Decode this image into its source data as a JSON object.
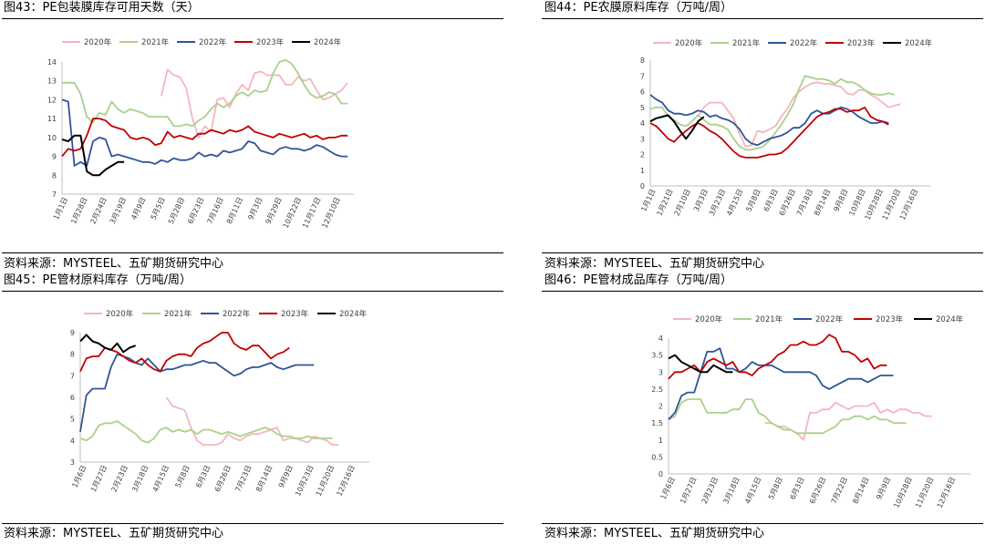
{
  "chart_data": [
    {
      "type": "line",
      "title": "图43：PE包装膜库存可用天数（天）",
      "source": "资料来源：MYSTEEL、五矿期货研究中心",
      "x_labels": [
        "1月1日",
        "1月28日",
        "2月24日",
        "3月19日",
        "4月9日",
        "5月5日",
        "5月28日",
        "6月23日",
        "7月16日",
        "8月11日",
        "9月3日",
        "9月29日",
        "10月22日",
        "11月17日",
        "12月10日"
      ],
      "ylim": [
        7,
        14
      ],
      "yticks": [
        7,
        8,
        9,
        10,
        11,
        12,
        13,
        14
      ],
      "legend_position": "top",
      "series": [
        {
          "name": "2020年",
          "color": "#F4B6BC",
          "values": [
            null,
            null,
            null,
            null,
            null,
            null,
            null,
            null,
            null,
            null,
            null,
            null,
            null,
            null,
            null,
            null,
            12.2,
            13.6,
            13.3,
            13.2,
            12.6,
            11.0,
            10.0,
            10.6,
            10.3,
            12.0,
            12.1,
            11.6,
            12.3,
            12.8,
            12.5,
            13.4,
            13.5,
            13.3,
            13.3,
            13.3,
            12.8,
            12.8,
            13.2,
            13.0,
            13.1,
            12.5,
            12.0,
            12.1,
            12.3,
            12.5,
            12.9
          ]
        },
        {
          "name": "2021年",
          "color": "#A9D18E",
          "values": [
            12.9,
            12.9,
            12.9,
            12.3,
            11.1,
            10.8,
            11.3,
            11.2,
            11.9,
            11.5,
            11.3,
            11.5,
            11.4,
            11.3,
            11.1,
            11.1,
            11.1,
            11.1,
            10.6,
            10.6,
            10.7,
            10.6,
            10.9,
            11.1,
            11.5,
            11.8,
            11.6,
            11.8,
            12.2,
            12.4,
            12.2,
            12.5,
            12.4,
            12.5,
            13.4,
            14.0,
            14.1,
            13.9,
            13.4,
            12.8,
            12.3,
            12.1,
            12.2,
            12.4,
            12.3,
            11.8,
            11.8
          ]
        },
        {
          "name": "2022年",
          "color": "#2F5597",
          "values": [
            12.0,
            11.9,
            8.5,
            8.7,
            8.5,
            9.8,
            10.0,
            9.9,
            9.0,
            9.1,
            9.0,
            8.9,
            8.8,
            8.7,
            8.7,
            8.6,
            8.8,
            8.7,
            8.9,
            8.8,
            8.8,
            8.9,
            9.2,
            9.0,
            9.1,
            9.0,
            9.3,
            9.2,
            9.3,
            9.4,
            9.8,
            9.7,
            9.3,
            9.2,
            9.1,
            9.4,
            9.5,
            9.4,
            9.4,
            9.3,
            9.4,
            9.6,
            9.5,
            9.3,
            9.1,
            9.0,
            9.0
          ]
        },
        {
          "name": "2023年",
          "color": "#C00000",
          "values": [
            9.0,
            9.4,
            9.3,
            9.4,
            10.1,
            11.0,
            11.0,
            10.9,
            10.6,
            10.5,
            10.4,
            10.0,
            9.9,
            10.0,
            9.9,
            9.6,
            9.7,
            10.3,
            10.0,
            10.1,
            10.0,
            9.9,
            10.2,
            10.2,
            10.4,
            10.3,
            10.2,
            10.4,
            10.3,
            10.4,
            10.6,
            10.3,
            10.2,
            10.1,
            10.0,
            10.2,
            10.1,
            10.0,
            10.1,
            10.2,
            10.0,
            10.1,
            9.9,
            10.0,
            10.0,
            10.1,
            10.1
          ]
        },
        {
          "name": "2024年",
          "color": "#000000",
          "values": [
            9.9,
            9.8,
            10.1,
            10.1,
            8.2,
            8.0,
            8.0,
            8.3,
            8.5,
            8.7,
            8.7
          ]
        }
      ]
    },
    {
      "type": "line",
      "title": "图44：PE农膜原料库存（万吨/周）",
      "source": "资料来源：MYSTEEL、五矿期货研究中心",
      "x_labels": [
        "1月1日",
        "1月21日",
        "2月10日",
        "3月3日",
        "3月23日",
        "4月15日",
        "5月8日",
        "6月3日",
        "6月26日",
        "7月18日",
        "8月14日",
        "9月8日",
        "10月8日",
        "10月28日",
        "11月20日",
        "12月16日"
      ],
      "ylim": [
        0,
        8
      ],
      "yticks": [
        0,
        1,
        2,
        3,
        4,
        5,
        6,
        7,
        8
      ],
      "legend_position": "top",
      "series": [
        {
          "name": "2020年",
          "color": "#F4B6BC",
          "values": [
            null,
            null,
            null,
            null,
            null,
            null,
            null,
            null,
            4.4,
            5.0,
            5.3,
            5.3,
            5.3,
            4.8,
            4.3,
            3.3,
            2.5,
            2.6,
            3.5,
            3.4,
            3.6,
            3.8,
            4.4,
            4.9,
            5.6,
            6.0,
            6.3,
            6.5,
            6.6,
            6.5,
            6.5,
            6.4,
            6.3,
            5.9,
            5.8,
            6.1,
            6.1,
            5.8,
            5.6,
            5.3,
            5.0,
            5.1,
            5.2
          ]
        },
        {
          "name": "2021年",
          "color": "#A9D18E",
          "values": [
            4.9,
            5.0,
            5.0,
            4.4,
            4.2,
            3.9,
            3.8,
            4.1,
            4.5,
            4.2,
            3.9,
            3.9,
            3.8,
            3.6,
            3.0,
            2.5,
            2.3,
            2.3,
            2.4,
            2.5,
            2.9,
            3.4,
            3.9,
            4.5,
            5.2,
            6.2,
            7.0,
            6.9,
            6.8,
            6.8,
            6.7,
            6.5,
            6.8,
            6.6,
            6.6,
            6.4,
            6.1,
            5.9,
            5.8,
            5.8,
            5.9,
            5.8
          ]
        },
        {
          "name": "2022年",
          "color": "#2F5597",
          "values": [
            5.8,
            5.5,
            5.3,
            4.8,
            4.6,
            4.6,
            4.5,
            4.6,
            4.8,
            4.7,
            4.4,
            4.5,
            4.3,
            4.2,
            4.0,
            3.6,
            3.0,
            2.7,
            2.6,
            2.8,
            3.0,
            3.1,
            3.2,
            3.4,
            3.7,
            3.7,
            4.0,
            4.6,
            4.8,
            4.6,
            4.6,
            4.8,
            5.0,
            4.9,
            4.7,
            4.4,
            4.2,
            4.0,
            4.0,
            4.1,
            4.0
          ]
        },
        {
          "name": "2023年",
          "color": "#C00000",
          "values": [
            4.0,
            3.8,
            3.4,
            3.0,
            2.8,
            3.2,
            3.5,
            3.8,
            4.0,
            3.8,
            3.5,
            3.3,
            3.0,
            2.6,
            2.2,
            1.9,
            1.8,
            1.8,
            1.8,
            1.9,
            2.0,
            2.0,
            2.1,
            2.4,
            2.8,
            3.2,
            3.6,
            4.0,
            4.4,
            4.6,
            4.7,
            4.9,
            4.9,
            4.7,
            4.8,
            4.8,
            5.0,
            4.4,
            4.2,
            4.1,
            3.9
          ]
        },
        {
          "name": "2024年",
          "color": "#000000",
          "values": [
            4.1,
            4.3,
            4.4,
            4.5,
            4.1,
            3.5,
            3.0,
            3.5,
            4.1,
            4.4
          ]
        }
      ]
    },
    {
      "type": "line",
      "title": "图45：PE管材原料库存（万吨/周）",
      "source": "资料来源：MYSTEEL、五矿期货研究中心",
      "x_labels": [
        "1月6日",
        "1月27日",
        "2月23日",
        "3月18日",
        "4月15日",
        "5月8日",
        "6月3日",
        "6月26日",
        "7月23日",
        "8月14日",
        "9月9日",
        "10月23日",
        "11月20日",
        "12月16日"
      ],
      "ylim": [
        3,
        9
      ],
      "yticks": [
        3,
        4,
        5,
        6,
        7,
        8,
        9
      ],
      "legend_position": "top",
      "series": [
        {
          "name": "2020年",
          "color": "#F4B6BC",
          "values": [
            null,
            null,
            null,
            null,
            null,
            null,
            null,
            null,
            null,
            null,
            null,
            null,
            null,
            null,
            6.0,
            5.6,
            5.5,
            5.4,
            4.6,
            4.0,
            3.8,
            3.8,
            3.8,
            3.9,
            4.3,
            4.1,
            4.0,
            4.2,
            4.3,
            4.3,
            4.4,
            4.5,
            4.6,
            4.0,
            4.1,
            4.1,
            4.0,
            3.9,
            4.2,
            4.1,
            4.0,
            3.8,
            3.8
          ]
        },
        {
          "name": "2021年",
          "color": "#A9D18E",
          "values": [
            4.1,
            4.0,
            4.2,
            4.7,
            4.8,
            4.8,
            4.9,
            4.7,
            4.5,
            4.3,
            4.0,
            3.9,
            4.1,
            4.5,
            4.6,
            4.4,
            4.5,
            4.4,
            4.5,
            4.3,
            4.5,
            4.5,
            4.4,
            4.3,
            4.4,
            4.3,
            4.2,
            4.3,
            4.4,
            4.5,
            4.6,
            4.5,
            4.3,
            4.2,
            4.2,
            4.1,
            4.1,
            4.2,
            4.1,
            4.1,
            4.1,
            4.1
          ]
        },
        {
          "name": "2022年",
          "color": "#2F5597",
          "values": [
            4.4,
            6.1,
            6.4,
            6.4,
            6.4,
            7.4,
            8.0,
            7.9,
            7.8,
            7.6,
            7.5,
            7.8,
            7.5,
            7.2,
            7.3,
            7.3,
            7.4,
            7.5,
            7.5,
            7.6,
            7.7,
            7.6,
            7.6,
            7.4,
            7.2,
            7.0,
            7.1,
            7.3,
            7.4,
            7.4,
            7.5,
            7.6,
            7.4,
            7.3,
            7.4,
            7.5,
            7.5,
            7.5,
            7.5
          ]
        },
        {
          "name": "2023年",
          "color": "#C00000",
          "values": [
            7.2,
            7.8,
            7.9,
            7.9,
            8.3,
            8.2,
            8.1,
            7.9,
            7.7,
            7.6,
            7.8,
            7.5,
            7.3,
            7.2,
            7.7,
            7.9,
            8.0,
            8.0,
            7.9,
            8.3,
            8.5,
            8.6,
            8.8,
            9.0,
            9.0,
            8.5,
            8.3,
            8.2,
            8.4,
            8.4,
            8.1,
            7.8,
            8.0,
            8.1,
            8.3
          ]
        },
        {
          "name": "2024年",
          "color": "#000000",
          "values": [
            8.6,
            8.9,
            8.6,
            8.5,
            8.3,
            8.2,
            8.5,
            8.1,
            8.3,
            8.4
          ]
        }
      ]
    },
    {
      "type": "line",
      "title": "图46：PE管材成品库存（万吨/周）",
      "source": "资料来源：MYSTEEL、五矿期货研究中心",
      "x_labels": [
        "1月6日",
        "1月27日",
        "2月23日",
        "3月18日",
        "4月15日",
        "5月8日",
        "6月3日",
        "6月26日",
        "7月22日",
        "8月14日",
        "9月9日",
        "10月28日",
        "11月20日",
        "12月16日"
      ],
      "ylim": [
        0,
        4
      ],
      "yticks": [
        0,
        0.5,
        1,
        1.5,
        2,
        2.5,
        3,
        3.5,
        4
      ],
      "legend_position": "top",
      "series": [
        {
          "name": "2020年",
          "color": "#F4B6BC",
          "values": [
            null,
            null,
            null,
            null,
            null,
            null,
            null,
            null,
            null,
            null,
            null,
            null,
            null,
            null,
            null,
            1.5,
            1.5,
            1.4,
            1.4,
            1.3,
            1.2,
            1.0,
            1.8,
            1.8,
            1.9,
            1.9,
            2.1,
            2.0,
            1.9,
            2.0,
            2.0,
            2.0,
            2.1,
            1.8,
            1.9,
            1.8,
            1.9,
            1.9,
            1.8,
            1.8,
            1.7,
            1.7
          ]
        },
        {
          "name": "2021年",
          "color": "#A9D18E",
          "values": [
            1.6,
            1.7,
            2.1,
            2.2,
            2.2,
            2.2,
            1.8,
            1.8,
            1.8,
            1.8,
            1.9,
            1.9,
            2.2,
            2.2,
            1.8,
            1.7,
            1.5,
            1.4,
            1.3,
            1.3,
            1.2,
            1.2,
            1.2,
            1.2,
            1.2,
            1.3,
            1.4,
            1.6,
            1.6,
            1.7,
            1.7,
            1.6,
            1.7,
            1.6,
            1.6,
            1.5,
            1.5,
            1.5
          ]
        },
        {
          "name": "2022年",
          "color": "#2F5597",
          "values": [
            1.6,
            1.8,
            2.3,
            2.4,
            2.4,
            3.0,
            3.6,
            3.6,
            3.7,
            3.1,
            3.1,
            3.0,
            3.1,
            3.3,
            3.2,
            3.2,
            3.2,
            3.1,
            3.0,
            3.0,
            3.0,
            3.0,
            3.0,
            2.9,
            2.6,
            2.5,
            2.6,
            2.7,
            2.8,
            2.8,
            2.8,
            2.7,
            2.8,
            2.9,
            2.9,
            2.9
          ]
        },
        {
          "name": "2023年",
          "color": "#C00000",
          "values": [
            2.8,
            3.0,
            3.0,
            3.1,
            3.2,
            3.0,
            3.3,
            3.4,
            3.3,
            3.2,
            3.3,
            3.0,
            3.0,
            2.9,
            3.1,
            3.2,
            3.3,
            3.5,
            3.6,
            3.8,
            3.8,
            3.9,
            3.8,
            3.8,
            3.9,
            4.1,
            4.0,
            3.6,
            3.6,
            3.5,
            3.3,
            3.4,
            3.1,
            3.2,
            3.2
          ]
        },
        {
          "name": "2024年",
          "color": "#000000",
          "values": [
            3.4,
            3.5,
            3.3,
            3.2,
            3.1,
            3.0,
            3.0,
            3.2,
            3.1,
            3.0,
            3.0
          ]
        }
      ]
    }
  ]
}
